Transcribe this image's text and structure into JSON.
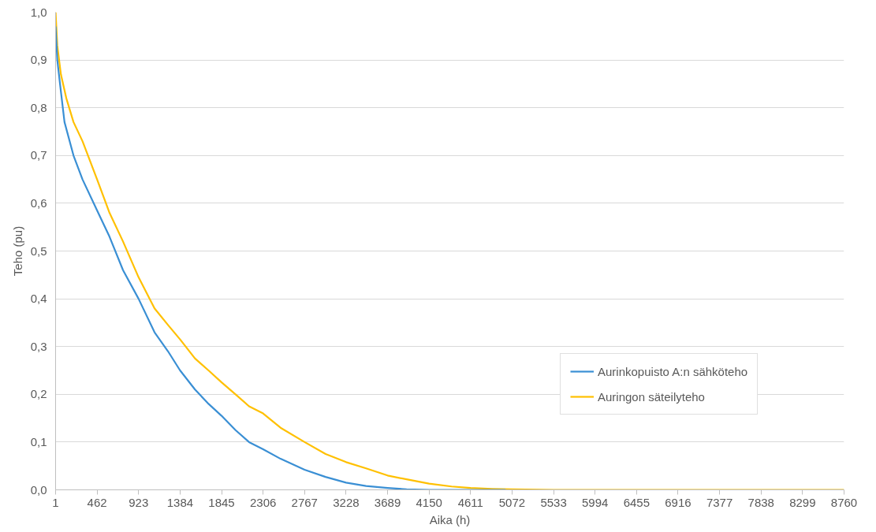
{
  "chart_data": {
    "type": "line",
    "xlabel": "Aika (h)",
    "ylabel": "Teho (pu)",
    "xlim": [
      1,
      8760
    ],
    "xticks": [
      1,
      462,
      923,
      1384,
      1845,
      2306,
      2767,
      3228,
      3689,
      4150,
      4611,
      5072,
      5533,
      5994,
      6455,
      6916,
      7377,
      7838,
      8299,
      8760
    ],
    "ylim": [
      0,
      1
    ],
    "yticks": [
      {
        "value": 0,
        "label": "0,0"
      },
      {
        "value": 0.1,
        "label": "0,1"
      },
      {
        "value": 0.2,
        "label": "0,2"
      },
      {
        "value": 0.3,
        "label": "0,3"
      },
      {
        "value": 0.4,
        "label": "0,4"
      },
      {
        "value": 0.5,
        "label": "0,5"
      },
      {
        "value": 0.6,
        "label": "0,6"
      },
      {
        "value": 0.7,
        "label": "0,7"
      },
      {
        "value": 0.8,
        "label": "0,8"
      },
      {
        "value": 0.9,
        "label": "0,9"
      },
      {
        "value": 1,
        "label": "1,0"
      }
    ],
    "grid": "y",
    "legend": "right",
    "marker": "none",
    "line_style": "solid",
    "series": [
      {
        "name": "Aurinkopuisto A:n sähköteho",
        "color": "#3a8fd4",
        "x": [
          1,
          20,
          50,
          100,
          200,
          300,
          462,
          600,
          750,
          923,
          1100,
          1250,
          1384,
          1550,
          1700,
          1845,
          2000,
          2150,
          2306,
          2500,
          2767,
          3000,
          3228,
          3450,
          3689,
          3900,
          4150,
          5000
        ],
        "values": [
          0.97,
          0.9,
          0.85,
          0.77,
          0.7,
          0.65,
          0.585,
          0.53,
          0.46,
          0.4,
          0.33,
          0.29,
          0.25,
          0.21,
          0.18,
          0.155,
          0.125,
          0.1,
          0.085,
          0.065,
          0.042,
          0.027,
          0.015,
          0.008,
          0.004,
          0.001,
          0,
          0
        ]
      },
      {
        "name": "Auringon säteilyteho",
        "color": "#ffc000",
        "x": [
          1,
          20,
          60,
          120,
          200,
          300,
          462,
          600,
          750,
          923,
          1100,
          1250,
          1384,
          1550,
          1700,
          1845,
          2000,
          2150,
          2306,
          2500,
          2767,
          3000,
          3228,
          3450,
          3689,
          3900,
          4150,
          4400,
          4611,
          4850,
          5072,
          5533,
          8760
        ],
        "values": [
          1.0,
          0.93,
          0.87,
          0.82,
          0.77,
          0.73,
          0.65,
          0.58,
          0.52,
          0.445,
          0.38,
          0.345,
          0.315,
          0.275,
          0.25,
          0.225,
          0.2,
          0.175,
          0.16,
          0.13,
          0.1,
          0.075,
          0.058,
          0.045,
          0.03,
          0.022,
          0.013,
          0.007,
          0.004,
          0.002,
          0.001,
          0,
          0
        ]
      }
    ]
  }
}
